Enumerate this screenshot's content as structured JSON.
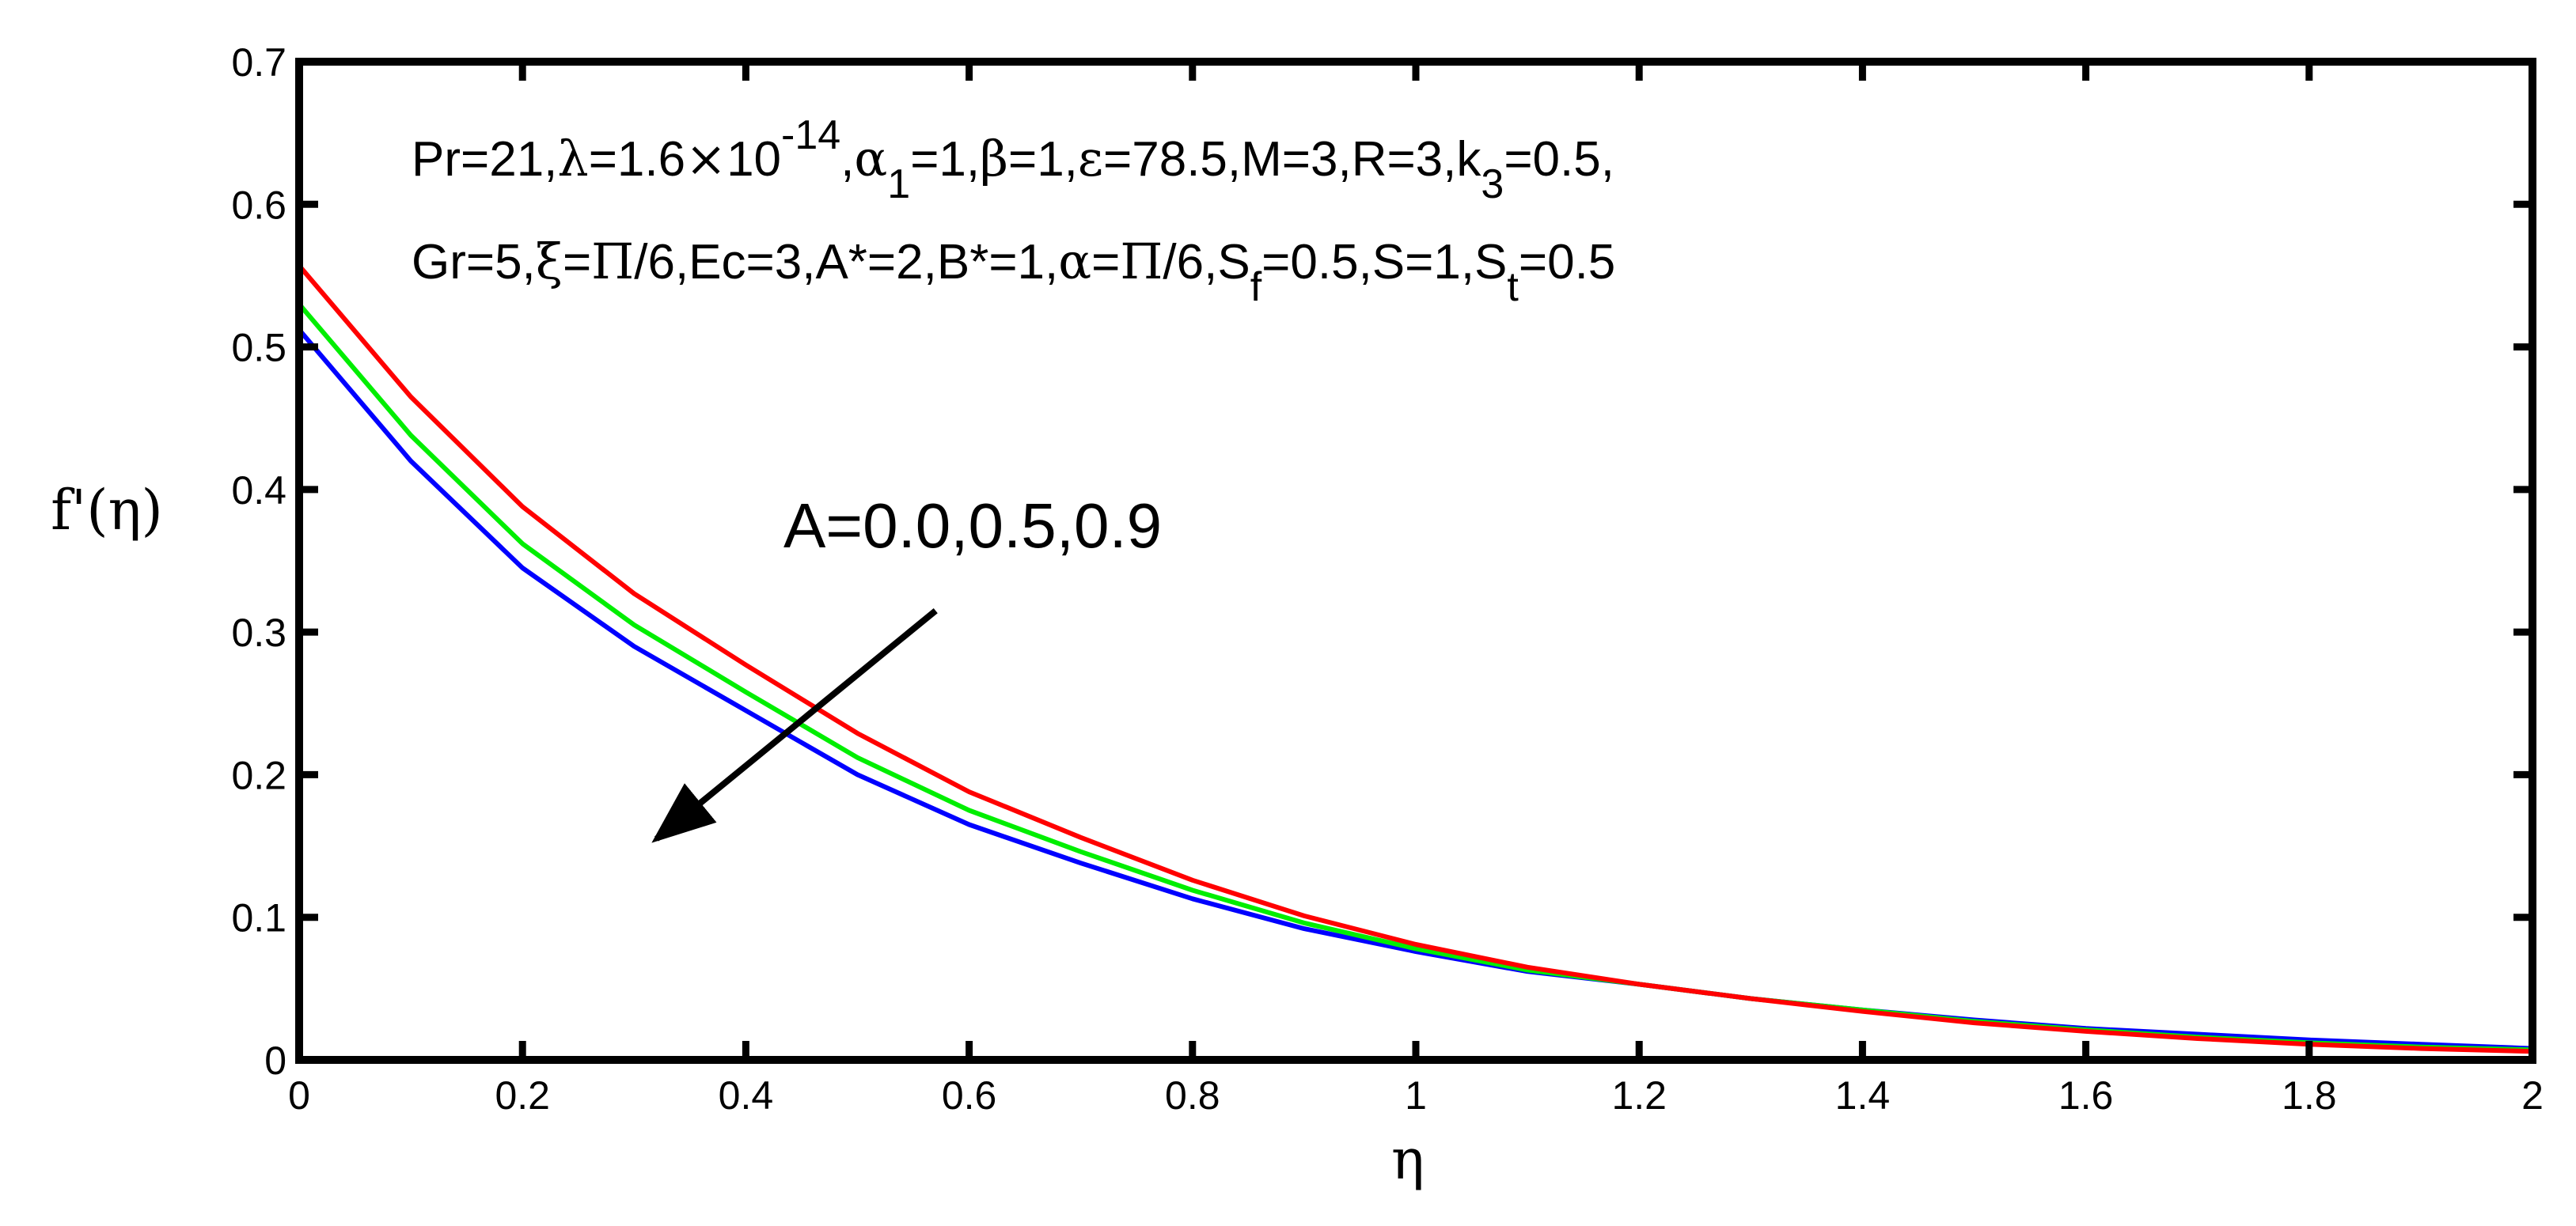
{
  "chart_data": {
    "type": "line",
    "xlabel": "η",
    "ylabel": "f'(η)",
    "xlim": [
      0,
      2
    ],
    "ylim": [
      0,
      0.7
    ],
    "xticks": [
      0,
      0.2,
      0.4,
      0.6,
      0.8,
      1,
      1.2,
      1.4,
      1.6,
      1.8,
      2
    ],
    "xtick_labels": [
      "0",
      "0.2",
      "0.4",
      "0.6",
      "0.8",
      "1",
      "1.2",
      "1.4",
      "1.6",
      "1.8",
      "2"
    ],
    "yticks": [
      0,
      0.1,
      0.2,
      0.3,
      0.4,
      0.5,
      0.6,
      0.7
    ],
    "ytick_labels": [
      "0",
      "0.1",
      "0.2",
      "0.3",
      "0.4",
      "0.5",
      "0.6",
      "0.7"
    ],
    "grid": false,
    "x": [
      0,
      0.1,
      0.2,
      0.3,
      0.4,
      0.5,
      0.6,
      0.7,
      0.8,
      0.9,
      1.0,
      1.1,
      1.2,
      1.3,
      1.4,
      1.5,
      1.6,
      1.7,
      1.8,
      1.9,
      2.0
    ],
    "series": [
      {
        "color": "#0000ff",
        "values": [
          0.512,
          0.42,
          0.345,
          0.29,
          0.245,
          0.2,
          0.165,
          0.138,
          0.113,
          0.092,
          0.076,
          0.062,
          0.053,
          0.043,
          0.035,
          0.028,
          0.022,
          0.018,
          0.014,
          0.011,
          0.008
        ]
      },
      {
        "color": "#00ee00",
        "values": [
          0.53,
          0.438,
          0.362,
          0.305,
          0.258,
          0.212,
          0.175,
          0.146,
          0.119,
          0.096,
          0.078,
          0.063,
          0.053,
          0.043,
          0.035,
          0.027,
          0.021,
          0.016,
          0.012,
          0.009,
          0.007
        ]
      },
      {
        "color": "#ff0000",
        "values": [
          0.557,
          0.465,
          0.388,
          0.327,
          0.277,
          0.229,
          0.188,
          0.156,
          0.126,
          0.101,
          0.081,
          0.065,
          0.053,
          0.043,
          0.034,
          0.026,
          0.02,
          0.015,
          0.011,
          0.008,
          0.006
        ]
      }
    ],
    "annotations": {
      "line1_parts": [
        "Pr=21,",
        "λ",
        "=1.6",
        "×",
        "10",
        "-14",
        ",",
        "α",
        "1",
        "=1,",
        "β",
        "=1,",
        "ε",
        "=78.5,M=3,R=3,k",
        "3",
        "=0.5,"
      ],
      "line2_parts": [
        "Gr=5,",
        "ξ",
        "=",
        "Π",
        "/6,Ec=3,A*=2,B*=1,",
        "α",
        "=",
        "Π",
        "/6,S",
        "f",
        "=0.5,S=1,S",
        "t",
        "=0.5"
      ],
      "arrow_label": "A=0.0,0.5,0.9",
      "arrow_from": [
        0.57,
        0.315
      ],
      "arrow_to": [
        0.32,
        0.155
      ]
    }
  }
}
